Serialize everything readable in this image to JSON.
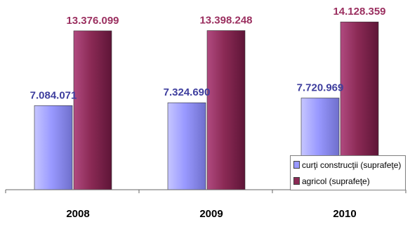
{
  "chart_data": {
    "type": "bar",
    "categories": [
      "2008",
      "2009",
      "2010"
    ],
    "series": [
      {
        "name": "curţi construcţii (suprafeţe)",
        "values": [
          7084071,
          7324690,
          7720969
        ],
        "labels": [
          "7.084.071",
          "7.324.690",
          "7.720.969"
        ],
        "color": "#9999ff"
      },
      {
        "name": "agricol (suprafeţe)",
        "values": [
          13376099,
          13398248,
          14128359
        ],
        "labels": [
          "13.376.099",
          "13.398.248",
          "14.128.359"
        ],
        "color": "#993366"
      }
    ],
    "ylim": [
      0,
      15500000
    ],
    "grid": false,
    "legend_position": "right",
    "label_colors": [
      "#3e3e9e",
      "#9b3060"
    ]
  }
}
